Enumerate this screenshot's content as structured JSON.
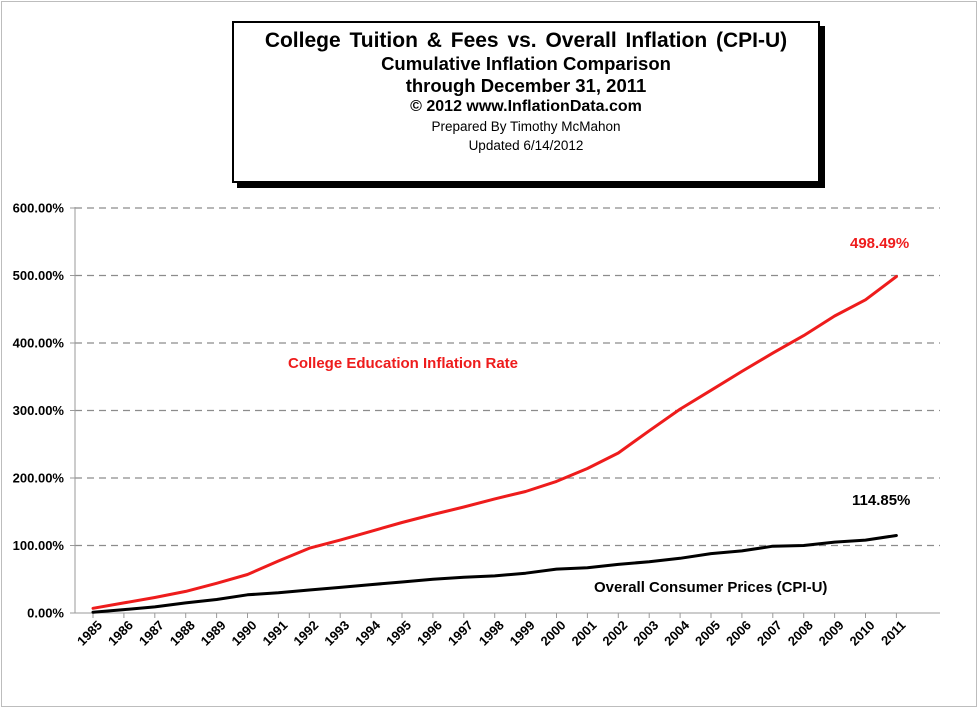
{
  "header": {
    "title": "College  Tuition & Fees vs. Overall  Inflation  (CPI-U)",
    "subtitle": "Cumulative Inflation Comparison",
    "period": "through December 31, 2011",
    "copyright": "© 2012 www.InflationData.com",
    "author": "Prepared  By Timothy McMahon",
    "updated": "Updated   6/14/2012"
  },
  "colors": {
    "college": "#ee1c1c",
    "cpi": "#000000",
    "grid": "#8c8c8c"
  },
  "chart_data": {
    "type": "line",
    "title": "College  Tuition & Fees vs. Overall  Inflation  (CPI-U)",
    "xlabel": "",
    "ylabel": "",
    "categories": [
      "1985",
      "1986",
      "1987",
      "1988",
      "1989",
      "1990",
      "1991",
      "1992",
      "1993",
      "1994",
      "1995",
      "1996",
      "1997",
      "1998",
      "1999",
      "2000",
      "2001",
      "2002",
      "2003",
      "2004",
      "2005",
      "2006",
      "2007",
      "2008",
      "2009",
      "2010",
      "2011"
    ],
    "y_ticks": [
      "0.00%",
      "100.00%",
      "200.00%",
      "300.00%",
      "400.00%",
      "500.00%",
      "600.00%"
    ],
    "ylim": [
      0,
      600
    ],
    "grid": true,
    "series": [
      {
        "name": "College Education Inflation Rate",
        "color": "#ee1c1c",
        "values": [
          7,
          15,
          23,
          32,
          44,
          57,
          77,
          96,
          108,
          121,
          134,
          146,
          157,
          169,
          180,
          195,
          214,
          237,
          270,
          302,
          330,
          358,
          385,
          411,
          440,
          464,
          498.49
        ]
      },
      {
        "name": "Overall Consumer Prices (CPI-U)",
        "color": "#000000",
        "values": [
          1,
          5,
          9,
          15,
          20,
          27,
          30,
          34,
          38,
          42,
          46,
          50,
          53,
          55,
          59,
          65,
          67,
          72,
          76,
          81,
          88,
          92,
          99,
          100,
          105,
          108,
          114.85
        ]
      }
    ],
    "annotations": {
      "college_label": "College Education Inflation Rate",
      "college_end": "498.49%",
      "cpi_label": "Overall Consumer Prices (CPI-U)",
      "cpi_end": "114.85%"
    }
  }
}
